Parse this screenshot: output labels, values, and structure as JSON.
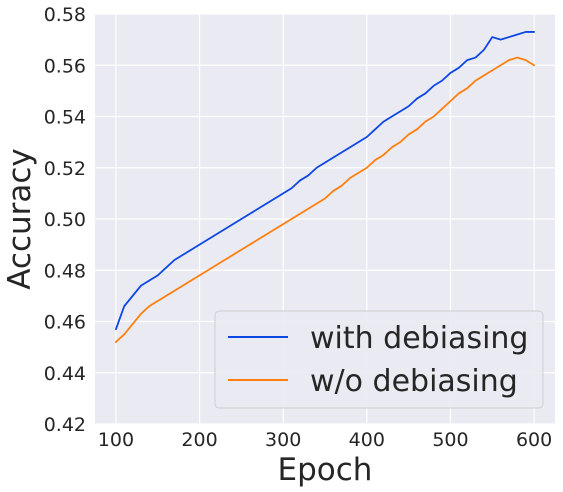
{
  "chart_data": {
    "type": "line",
    "title": "",
    "xlabel": "Epoch",
    "ylabel": "Accuracy",
    "xlim": [
      75,
      625
    ],
    "ylim": [
      0.42,
      0.58
    ],
    "xticks": [
      100,
      200,
      300,
      400,
      500,
      600
    ],
    "yticks": [
      0.42,
      0.44,
      0.46,
      0.48,
      0.5,
      0.52,
      0.54,
      0.56,
      0.58
    ],
    "grid": true,
    "legend_position": "lower right",
    "background_color": "#eaeaf2",
    "series": [
      {
        "name": "with debiasing",
        "color": "#0c47e6",
        "x": [
          100,
          110,
          120,
          130,
          140,
          150,
          160,
          170,
          180,
          190,
          200,
          210,
          220,
          230,
          240,
          250,
          260,
          270,
          280,
          290,
          300,
          310,
          320,
          330,
          340,
          350,
          360,
          370,
          380,
          390,
          400,
          410,
          420,
          430,
          440,
          450,
          460,
          470,
          480,
          490,
          500,
          510,
          520,
          530,
          540,
          550,
          560,
          570,
          580,
          590,
          600
        ],
        "values": [
          0.457,
          0.466,
          0.47,
          0.474,
          0.476,
          0.478,
          0.481,
          0.484,
          0.486,
          0.488,
          0.49,
          0.492,
          0.494,
          0.496,
          0.498,
          0.5,
          0.502,
          0.504,
          0.506,
          0.508,
          0.51,
          0.512,
          0.515,
          0.517,
          0.52,
          0.522,
          0.524,
          0.526,
          0.528,
          0.53,
          0.532,
          0.535,
          0.538,
          0.54,
          0.542,
          0.544,
          0.547,
          0.549,
          0.552,
          0.554,
          0.557,
          0.559,
          0.562,
          0.563,
          0.566,
          0.571,
          0.57,
          0.571,
          0.572,
          0.573,
          0.573
        ]
      },
      {
        "name": "w/o debiasing",
        "color": "#ff7f0e",
        "x": [
          100,
          110,
          120,
          130,
          140,
          150,
          160,
          170,
          180,
          190,
          200,
          210,
          220,
          230,
          240,
          250,
          260,
          270,
          280,
          290,
          300,
          310,
          320,
          330,
          340,
          350,
          360,
          370,
          380,
          390,
          400,
          410,
          420,
          430,
          440,
          450,
          460,
          470,
          480,
          490,
          500,
          510,
          520,
          530,
          540,
          550,
          560,
          570,
          580,
          590,
          600
        ],
        "values": [
          0.452,
          0.455,
          0.459,
          0.463,
          0.466,
          0.468,
          0.47,
          0.472,
          0.474,
          0.476,
          0.478,
          0.48,
          0.482,
          0.484,
          0.486,
          0.488,
          0.49,
          0.492,
          0.494,
          0.496,
          0.498,
          0.5,
          0.502,
          0.504,
          0.506,
          0.508,
          0.511,
          0.513,
          0.516,
          0.518,
          0.52,
          0.523,
          0.525,
          0.528,
          0.53,
          0.533,
          0.535,
          0.538,
          0.54,
          0.543,
          0.546,
          0.549,
          0.551,
          0.554,
          0.556,
          0.558,
          0.56,
          0.562,
          0.563,
          0.562,
          0.56
        ]
      }
    ]
  }
}
